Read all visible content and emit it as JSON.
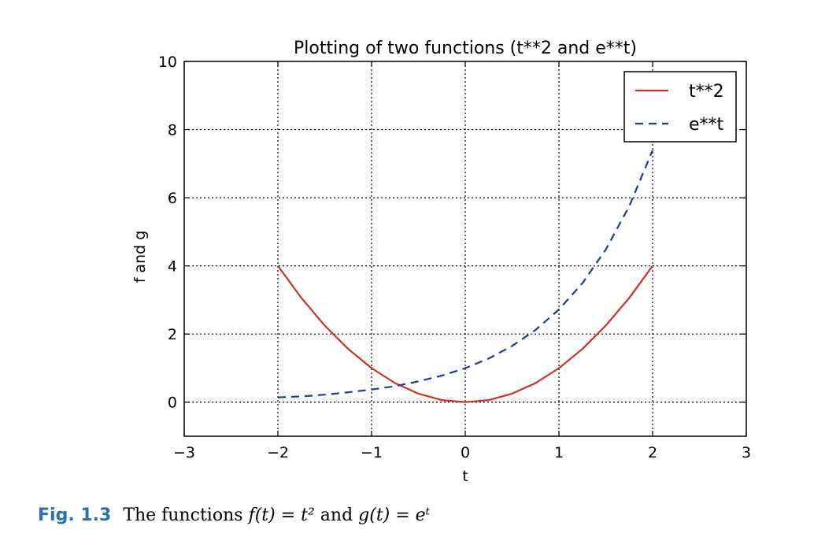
{
  "chart_data": {
    "type": "line",
    "title": "Plotting of two functions (t**2 and e**t)",
    "xlabel": "t",
    "ylabel": "f and g",
    "xlim": [
      -3,
      3
    ],
    "ylim": [
      -1,
      10
    ],
    "xticks": [
      -3,
      -2,
      -1,
      0,
      1,
      2,
      3
    ],
    "xtick_labels": [
      "−3",
      "−2",
      "−1",
      "0",
      "1",
      "2",
      "3"
    ],
    "yticks": [
      0,
      2,
      4,
      6,
      8,
      10
    ],
    "ytick_labels": [
      "0",
      "2",
      "4",
      "6",
      "8",
      "10"
    ],
    "grid": true,
    "legend_position": "top-right",
    "x": [
      -2.0,
      -1.75,
      -1.5,
      -1.25,
      -1.0,
      -0.75,
      -0.5,
      -0.25,
      0.0,
      0.25,
      0.5,
      0.75,
      1.0,
      1.25,
      1.5,
      1.75,
      2.0
    ],
    "series": [
      {
        "name": "t**2",
        "color": "#cc3322",
        "style": "solid",
        "values": [
          4.0,
          3.06,
          2.25,
          1.56,
          1.0,
          0.56,
          0.25,
          0.06,
          0.0,
          0.06,
          0.25,
          0.56,
          1.0,
          1.56,
          2.25,
          3.06,
          4.0
        ]
      },
      {
        "name": "e**t",
        "color": "#1f3a93",
        "style": "dashed",
        "values": [
          0.14,
          0.17,
          0.22,
          0.29,
          0.37,
          0.47,
          0.61,
          0.78,
          1.0,
          1.28,
          1.65,
          2.12,
          2.72,
          3.49,
          4.48,
          5.75,
          7.39
        ]
      }
    ]
  },
  "caption": {
    "fig_label": "Fig. 1.3",
    "text_prefix": "The functions",
    "f_expr": "f(t) = t²",
    "conjunction": "and",
    "g_expr": "g(t) = eᵗ"
  }
}
